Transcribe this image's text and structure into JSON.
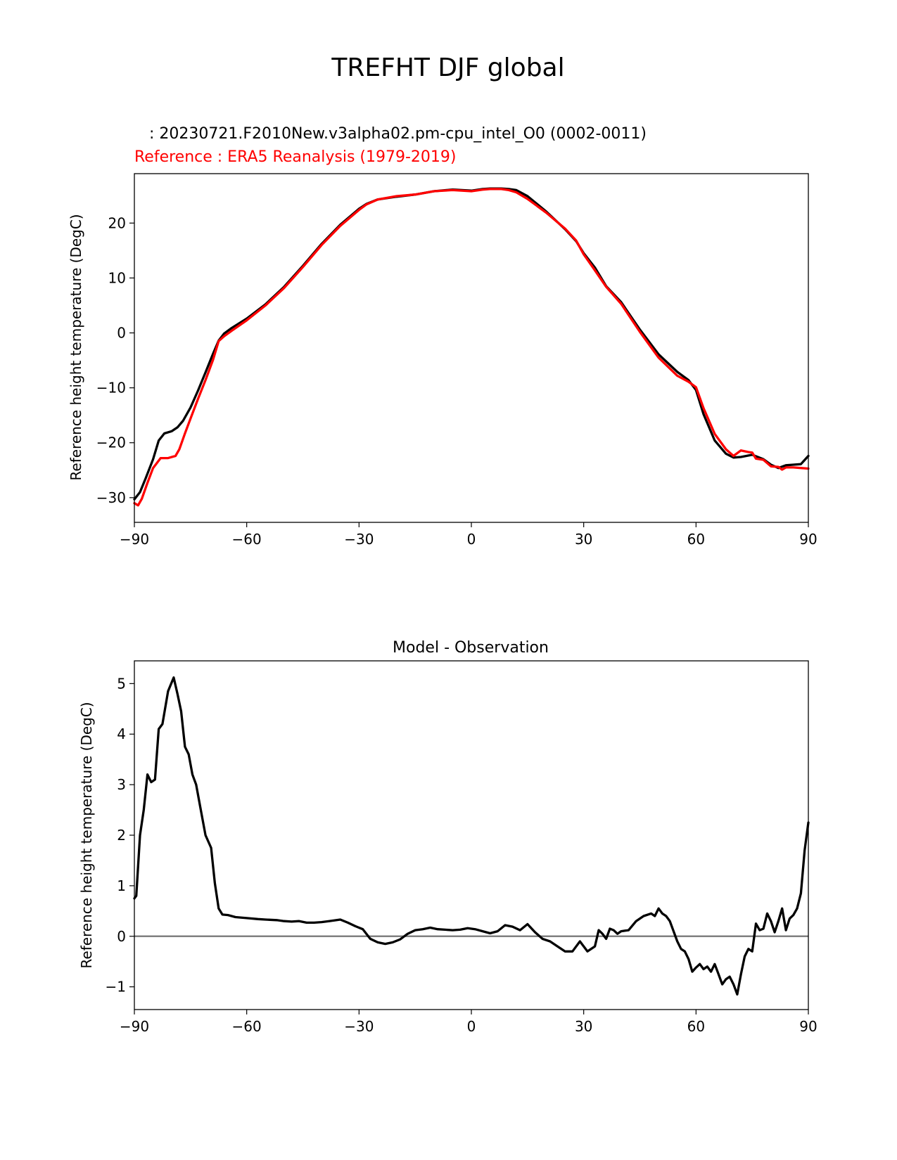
{
  "figure_title": "TREFHT DJF global",
  "chart_data": [
    {
      "type": "line",
      "test_label": "   : 20230721.F2010New.v3alpha02.pm-cpu_intel_O0 (0002-0011)",
      "reference_label": "Reference : ERA5 Reanalysis (1979-2019)",
      "ylabel": "Reference height temperature (DegC)",
      "xlabel": "",
      "xlim": [
        -90,
        90
      ],
      "ylim": [
        -34.5,
        29
      ],
      "xticks": [
        -90,
        -60,
        -30,
        0,
        30,
        60,
        90
      ],
      "yticks": [
        -30,
        -20,
        -10,
        0,
        10,
        20
      ],
      "series": [
        {
          "name": "Test",
          "color": "#000000",
          "x": [
            -90,
            -88.5,
            -87,
            -85,
            -83.5,
            -82,
            -80,
            -78.5,
            -77,
            -75,
            -73,
            -71,
            -69,
            -67.5,
            -66,
            -64,
            -60,
            -55,
            -50,
            -45,
            -40,
            -35,
            -30,
            -28,
            -25,
            -20,
            -15,
            -10,
            -5,
            0,
            3,
            5,
            8,
            10,
            12,
            15,
            20,
            25,
            28,
            30,
            33,
            36,
            40,
            45,
            50,
            55,
            58,
            60,
            62,
            65,
            68,
            70,
            72,
            75,
            78,
            80,
            82,
            84,
            86,
            88,
            90
          ],
          "values": [
            -30.3,
            -29,
            -26.5,
            -23,
            -19.6,
            -18.3,
            -17.9,
            -17.2,
            -16,
            -13.6,
            -10.5,
            -7.2,
            -3.8,
            -1.4,
            -0.1,
            0.9,
            2.6,
            5.2,
            8.4,
            12.2,
            16.2,
            19.7,
            22.6,
            23.5,
            24.3,
            24.8,
            25.2,
            25.8,
            26.1,
            25.9,
            26.2,
            26.3,
            26.3,
            26.2,
            26.0,
            24.9,
            22.1,
            18.9,
            16.7,
            14.5,
            11.9,
            8.5,
            5.6,
            0.6,
            -3.9,
            -7.1,
            -8.6,
            -10.4,
            -14.8,
            -19.6,
            -22.0,
            -22.7,
            -22.6,
            -22.2,
            -23.0,
            -24.0,
            -24.6,
            -24.1,
            -24.0,
            -23.9,
            -22.4
          ]
        },
        {
          "name": "Reference",
          "color": "#ff0000",
          "x": [
            -90,
            -89,
            -88,
            -86.5,
            -85,
            -83,
            -81,
            -79,
            -78,
            -76.5,
            -75,
            -73,
            -71,
            -69,
            -67.5,
            -66,
            -64,
            -60,
            -55,
            -50,
            -45,
            -40,
            -35,
            -30,
            -28,
            -25,
            -20,
            -15,
            -10,
            -5,
            0,
            3,
            5,
            8,
            10,
            12,
            15,
            20,
            25,
            28,
            30,
            33,
            36,
            40,
            45,
            50,
            55,
            58,
            60,
            62,
            65,
            68,
            70,
            72,
            74,
            75,
            76,
            78,
            80,
            82,
            83,
            84,
            86,
            88,
            90
          ],
          "values": [
            -31.0,
            -31.4,
            -30.2,
            -27.3,
            -24.6,
            -22.8,
            -22.8,
            -22.4,
            -21.2,
            -18.3,
            -15.6,
            -12.0,
            -8.6,
            -4.9,
            -1.5,
            -0.6,
            0.4,
            2.3,
            5.0,
            8.2,
            12.0,
            16.0,
            19.5,
            22.4,
            23.4,
            24.3,
            24.9,
            25.2,
            25.8,
            26.0,
            25.8,
            26.1,
            26.2,
            26.2,
            26.0,
            25.6,
            24.4,
            21.9,
            19.0,
            16.8,
            14.3,
            11.4,
            8.4,
            5.3,
            0.2,
            -4.5,
            -7.8,
            -8.9,
            -9.9,
            -13.7,
            -18.4,
            -21.2,
            -22.4,
            -21.4,
            -21.7,
            -21.8,
            -22.9,
            -23.1,
            -24.3,
            -24.4,
            -24.9,
            -24.5,
            -24.5,
            -24.6,
            -24.7
          ]
        }
      ]
    },
    {
      "type": "line",
      "title": "Model - Observation",
      "ylabel": "Reference height temperature (DegC)",
      "xlabel": "",
      "xlim": [
        -90,
        90
      ],
      "ylim": [
        -1.45,
        5.45
      ],
      "xticks": [
        -90,
        -60,
        -30,
        0,
        30,
        60,
        90
      ],
      "yticks": [
        -1,
        0,
        1,
        2,
        3,
        4,
        5
      ],
      "zero_line_color": "#808080",
      "series": [
        {
          "name": "Model - Observation",
          "color": "#000000",
          "x": [
            -90,
            -89.5,
            -88.5,
            -87.5,
            -86.5,
            -85.5,
            -84.5,
            -83.5,
            -82.5,
            -81,
            -79.5,
            -78.5,
            -77.5,
            -76.5,
            -75.5,
            -74.5,
            -73.5,
            -72.5,
            -71,
            -69.5,
            -68.5,
            -67.5,
            -66.5,
            -65,
            -63,
            -60,
            -57,
            -55,
            -52,
            -50,
            -48,
            -46,
            -44,
            -42,
            -40,
            -38,
            -35,
            -33,
            -31,
            -29,
            -27,
            -25,
            -23,
            -21,
            -19,
            -17,
            -15,
            -13,
            -11,
            -9,
            -7,
            -5,
            -3,
            -1,
            1,
            3,
            5,
            7,
            9,
            11,
            13,
            15,
            17,
            19,
            21,
            23,
            25,
            27,
            29,
            31,
            33,
            34,
            35,
            36,
            37,
            38,
            39,
            40,
            42,
            44,
            46,
            48,
            49,
            50,
            51,
            52,
            53,
            54,
            55,
            56,
            57,
            58,
            59,
            60,
            61,
            62,
            63,
            64,
            65,
            66,
            67,
            68,
            69,
            70,
            71,
            72,
            73,
            74,
            75,
            76,
            77,
            78,
            79,
            80,
            81,
            82,
            83,
            84,
            85,
            86,
            87,
            88,
            89,
            90
          ],
          "values": [
            0.75,
            0.8,
            2.0,
            2.5,
            3.2,
            3.05,
            3.1,
            4.1,
            4.2,
            4.85,
            5.12,
            4.8,
            4.45,
            3.75,
            3.6,
            3.2,
            3.0,
            2.6,
            2.0,
            1.75,
            1.05,
            0.55,
            0.43,
            0.42,
            0.38,
            0.36,
            0.34,
            0.33,
            0.32,
            0.3,
            0.29,
            0.3,
            0.27,
            0.27,
            0.28,
            0.3,
            0.33,
            0.27,
            0.2,
            0.14,
            -0.05,
            -0.12,
            -0.15,
            -0.12,
            -0.06,
            0.05,
            0.12,
            0.14,
            0.17,
            0.14,
            0.13,
            0.12,
            0.13,
            0.16,
            0.14,
            0.1,
            0.06,
            0.1,
            0.22,
            0.19,
            0.12,
            0.24,
            0.08,
            -0.05,
            -0.1,
            -0.2,
            -0.3,
            -0.3,
            -0.1,
            -0.3,
            -0.2,
            0.12,
            0.05,
            -0.05,
            0.15,
            0.12,
            0.05,
            0.1,
            0.12,
            0.3,
            0.4,
            0.45,
            0.4,
            0.55,
            0.45,
            0.4,
            0.3,
            0.1,
            -0.1,
            -0.25,
            -0.3,
            -0.45,
            -0.7,
            -0.62,
            -0.55,
            -0.65,
            -0.6,
            -0.7,
            -0.55,
            -0.75,
            -0.95,
            -0.85,
            -0.8,
            -0.95,
            -1.15,
            -0.75,
            -0.4,
            -0.25,
            -0.3,
            0.25,
            0.12,
            0.15,
            0.45,
            0.3,
            0.08,
            0.3,
            0.55,
            0.12,
            0.35,
            0.42,
            0.55,
            0.85,
            1.7,
            2.25
          ]
        }
      ]
    }
  ]
}
